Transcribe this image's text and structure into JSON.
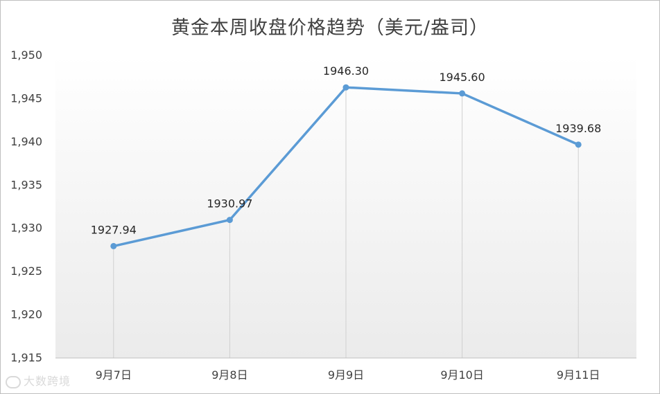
{
  "chart_data": {
    "type": "line",
    "title": "黄金本周收盘价格趋势（美元/盎司）",
    "categories": [
      "9月7日",
      "9月8日",
      "9月9日",
      "9月10日",
      "9月11日"
    ],
    "series": [
      {
        "values": [
          1927.94,
          1930.97,
          1946.3,
          1945.6,
          1939.68
        ]
      }
    ],
    "data_labels": [
      "1927.94",
      "1930.97",
      "1946.30",
      "1945.60",
      "1939.68"
    ],
    "y_ticks": [
      "1,915",
      "1,920",
      "1,925",
      "1,930",
      "1,935",
      "1,940",
      "1,945",
      "1,950"
    ],
    "ylim": [
      1915,
      1950
    ],
    "grid": false,
    "drop_lines": true,
    "line_color": "#5b9bd5"
  },
  "watermark": "大数跨境"
}
